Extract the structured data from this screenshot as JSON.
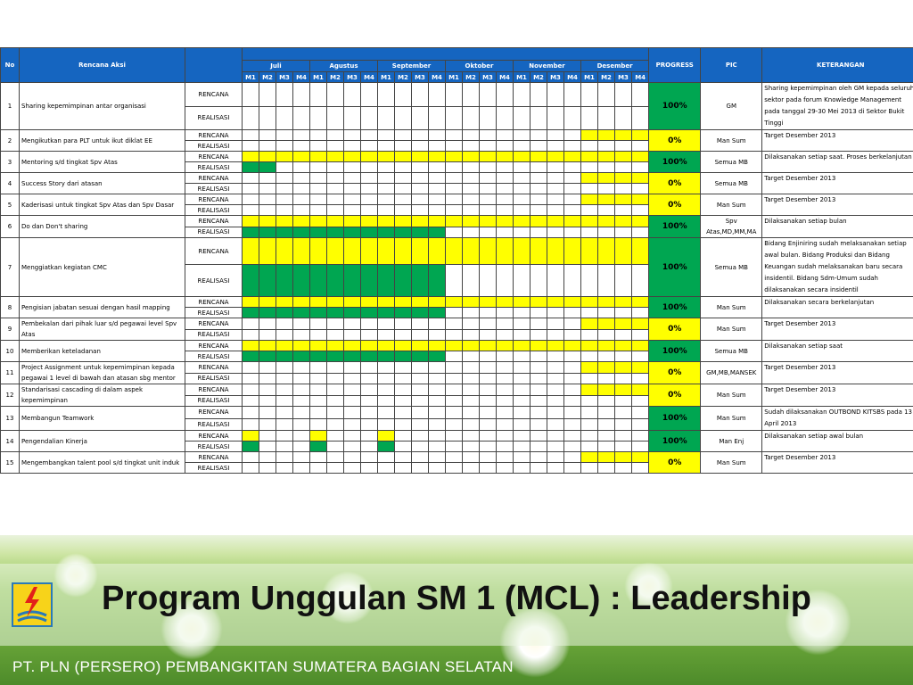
{
  "header": {
    "no": "No",
    "activity": "Rencana Aksi",
    "progress": "PROGRESS",
    "pic": "PIC",
    "notes": "KETERANGAN",
    "months": [
      "Juli",
      "Agustus",
      "September",
      "Oktober",
      "November",
      "Desember"
    ],
    "weeks": [
      "M1",
      "M2",
      "M3",
      "M4"
    ]
  },
  "labels": {
    "plan": "RENCANA",
    "realization": "REALISASI"
  },
  "colors": {
    "header": "#1565c0",
    "plan_fill": "#ffff00",
    "done_fill": "#00a651"
  },
  "rows": [
    {
      "no": "1",
      "activity": "Sharing kepemimpinan antar organisasi",
      "plan_weeks": [],
      "real_weeks": [],
      "progress": "100%",
      "progress_color": "green",
      "pic": "GM",
      "notes": "Sharing kepemimpinan oleh GM kepada seluruh sektor pada forum Knowledge Management pada tanggal 29-30 Mei 2013 di Sektor Bukit Tinggi",
      "tall": true
    },
    {
      "no": "2",
      "activity": "Mengikutkan para PLT untuk ikut diklat EE",
      "plan_weeks": [
        20,
        21,
        22,
        23
      ],
      "real_weeks": [],
      "progress": "0%",
      "progress_color": "yellow",
      "pic": "Man Sum",
      "notes": "Target Desember 2013"
    },
    {
      "no": "3",
      "activity": "Mentoring s/d tingkat Spv Atas",
      "plan_weeks": [
        0,
        1,
        2,
        3,
        4,
        5,
        6,
        7,
        8,
        9,
        10,
        11,
        12,
        13,
        14,
        15,
        16,
        17,
        18,
        19,
        20,
        21,
        22,
        23
      ],
      "real_weeks": [
        0,
        1
      ],
      "progress": "100%",
      "progress_color": "green",
      "pic": "Semua MB",
      "notes": "Dilaksanakan setiap saat. Proses berkelanjutan"
    },
    {
      "no": "4",
      "activity": "Success Story dari atasan",
      "plan_weeks": [
        20,
        21,
        22,
        23
      ],
      "real_weeks": [],
      "progress": "0%",
      "progress_color": "yellow",
      "pic": "Semua MB",
      "notes": "Target Desember 2013"
    },
    {
      "no": "5",
      "activity": "Kaderisasi untuk tingkat Spv Atas dan Spv Dasar",
      "plan_weeks": [
        20,
        21,
        22,
        23
      ],
      "real_weeks": [],
      "progress": "0%",
      "progress_color": "yellow",
      "pic": "Man Sum",
      "notes": "Target Desember 2013"
    },
    {
      "no": "6",
      "activity": "Do dan Don't sharing",
      "plan_weeks": [
        0,
        1,
        2,
        3,
        4,
        5,
        6,
        7,
        8,
        9,
        10,
        11,
        12,
        13,
        14,
        15,
        16,
        17,
        18,
        19,
        20,
        21,
        22,
        23
      ],
      "real_weeks": [
        0,
        1,
        2,
        3,
        4,
        5,
        6,
        7,
        8,
        9,
        10,
        11
      ],
      "progress": "100%",
      "progress_color": "green",
      "pic": "Spv Atas,MD,MM,MA",
      "notes": "Dilaksanakan setiap bulan"
    },
    {
      "no": "7",
      "activity": "Menggiatkan kegiatan CMC",
      "plan_weeks": [
        0,
        1,
        2,
        3,
        4,
        5,
        6,
        7,
        8,
        9,
        10,
        11,
        12,
        13,
        14,
        15,
        16,
        17,
        18,
        19,
        20,
        21,
        22,
        23
      ],
      "real_weeks": [
        0,
        1,
        2,
        3,
        4,
        5,
        6,
        7,
        8,
        9,
        10,
        11
      ],
      "progress": "100%",
      "progress_color": "green",
      "pic": "Semua MB",
      "notes": "Bidang Enjiniring sudah melaksanakan setiap awal bulan. Bidang Produksi dan Bidang Keuangan sudah melaksanakan baru secara insidentil. Bidang Sdm-Umum sudah dilaksanakan secara insidentil",
      "tall": true,
      "xtall": true
    },
    {
      "no": "8",
      "activity": "Pengisian jabatan sesuai dengan hasil mapping",
      "plan_weeks": [
        0,
        1,
        2,
        3,
        4,
        5,
        6,
        7,
        8,
        9,
        10,
        11,
        12,
        13,
        14,
        15,
        16,
        17,
        18,
        19,
        20,
        21,
        22,
        23
      ],
      "real_weeks": [
        0,
        1,
        2,
        3,
        4,
        5,
        6,
        7,
        8,
        9,
        10,
        11
      ],
      "progress": "100%",
      "progress_color": "green",
      "pic": "Man Sum",
      "notes": "Dilaksanakan secara berkelanjutan"
    },
    {
      "no": "9",
      "activity": "Pembekalan dari pihak luar s/d pegawai level Spv Atas",
      "plan_weeks": [
        20,
        21,
        22,
        23
      ],
      "real_weeks": [],
      "progress": "0%",
      "progress_color": "yellow",
      "pic": "Man Sum",
      "notes": "Target Desember 2013"
    },
    {
      "no": "10",
      "activity": "Memberikan keteladanan",
      "plan_weeks": [
        0,
        1,
        2,
        3,
        4,
        5,
        6,
        7,
        8,
        9,
        10,
        11,
        12,
        13,
        14,
        15,
        16,
        17,
        18,
        19,
        20,
        21,
        22,
        23
      ],
      "real_weeks": [
        0,
        1,
        2,
        3,
        4,
        5,
        6,
        7,
        8,
        9,
        10,
        11
      ],
      "progress": "100%",
      "progress_color": "green",
      "pic": "Semua MB",
      "notes": "Dilaksanakan setiap saat"
    },
    {
      "no": "11",
      "activity": "Project Assignment untuk kepemimpinan kepada pegawai 1 level di bawah dan atasan sbg mentor",
      "plan_weeks": [
        20,
        21,
        22,
        23
      ],
      "real_weeks": [],
      "progress": "0%",
      "progress_color": "yellow",
      "pic": "GM,MB,MANSEK",
      "notes": "Target Desember 2013"
    },
    {
      "no": "12",
      "activity": "Standarisasi cascading di dalam aspek kepemimpinan",
      "plan_weeks": [
        20,
        21,
        22,
        23
      ],
      "real_weeks": [],
      "progress": "0%",
      "progress_color": "yellow",
      "pic": "Man Sum",
      "notes": "Target Desember 2013"
    },
    {
      "no": "13",
      "activity": "Membangun Teamwork",
      "plan_weeks": [],
      "real_weeks": [],
      "progress": "100%",
      "progress_color": "green",
      "pic": "Man Sum",
      "notes": "Sudah dilaksanakan OUTBOND KITSBS pada 13 April 2013"
    },
    {
      "no": "14",
      "activity": "Pengendalian Kinerja",
      "plan_weeks": [
        0,
        4,
        8
      ],
      "real_weeks": [
        0,
        4,
        8
      ],
      "progress": "100%",
      "progress_color": "green",
      "pic": "Man Enj",
      "notes": "Dilaksanakan setiap awal bulan"
    },
    {
      "no": "15",
      "activity": "Mengembangkan talent pool s/d tingkat unit induk",
      "plan_weeks": [
        20,
        21,
        22,
        23
      ],
      "real_weeks": [],
      "progress": "0%",
      "progress_color": "yellow",
      "pic": "Man Sum",
      "notes": "Target Desember 2013"
    }
  ],
  "title": "Program Unggulan SM 1 (MCL) : Leadership",
  "company": "PT. PLN (PERSERO) PEMBANGKITAN SUMATERA BAGIAN SELATAN",
  "logo_icon": "pln-lightning-logo"
}
